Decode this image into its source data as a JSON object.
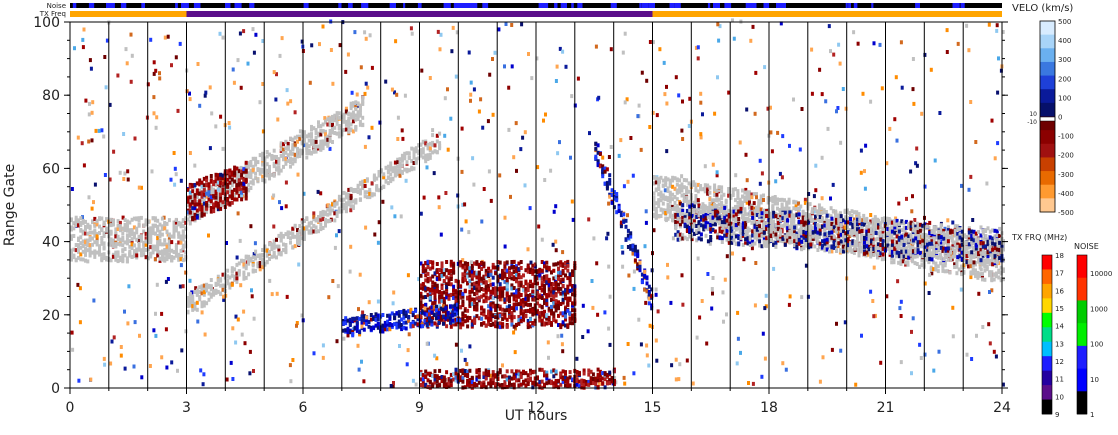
{
  "chart_data": {
    "type": "heatmap",
    "xlabel": "UT hours",
    "ylabel": "Range Gate",
    "xlim": [
      0,
      24
    ],
    "ylim": [
      0,
      100
    ],
    "x_ticks": [
      "0",
      "3",
      "6",
      "9",
      "12",
      "15",
      "18",
      "21",
      "24"
    ],
    "y_ticks": [
      "0",
      "20",
      "40",
      "60",
      "80",
      "100"
    ],
    "strip_labels": {
      "noise": "Noise",
      "txfreq": "TX Freq"
    },
    "tx_freq_strip": [
      {
        "from": 0,
        "to": 3,
        "color": "#ffa500"
      },
      {
        "from": 3,
        "to": 15,
        "color": "#5a0e8a"
      },
      {
        "from": 15,
        "to": 24,
        "color": "#ffa500"
      }
    ],
    "velocity_colorbar": {
      "title": "VELO (km/s)",
      "ticks": [
        "500",
        "400",
        "300",
        "200",
        "100",
        "0",
        "-100",
        "-200",
        "-300",
        "-400",
        "-500"
      ],
      "zero_labels": [
        "10",
        "-10"
      ],
      "range": [
        -500,
        500
      ]
    },
    "txfrq_colorbar": {
      "title": "TX FRQ (MHz)",
      "ticks": [
        "18",
        "17",
        "16",
        "15",
        "14",
        "13",
        "12",
        "11",
        "10",
        "9"
      ]
    },
    "noise_colorbar": {
      "title": "NOISE",
      "ticks": [
        "10000",
        "1000",
        "100",
        "10",
        "1"
      ]
    },
    "bands": [
      {
        "name": "",
        "kind": "ground",
        "x_start": 0.0,
        "x_end": 3.0,
        "y_start": 40,
        "y_end": 40,
        "width": 12
      },
      {
        "name": "",
        "kind": "ground",
        "x_start": 3.0,
        "x_end": 9.5,
        "y_start": 22,
        "y_end": 67,
        "width": 6
      },
      {
        "name": "",
        "kind": "ground",
        "x_start": 3.0,
        "x_end": 7.5,
        "y_start": 48,
        "y_end": 75,
        "width": 8
      },
      {
        "name": "",
        "kind": "ground",
        "x_start": 15.0,
        "x_end": 24.0,
        "y_start": 52,
        "y_end": 34,
        "width": 12
      },
      {
        "name": "",
        "kind": "negative",
        "x_start": 9.0,
        "x_end": 13.0,
        "y_start": 25,
        "y_end": 25,
        "width": 18
      },
      {
        "name": "",
        "kind": "negative",
        "x_start": 3.0,
        "x_end": 4.5,
        "y_start": 50,
        "y_end": 56,
        "width": 10
      },
      {
        "name": "",
        "kind": "negative",
        "x_start": 9.0,
        "x_end": 14.0,
        "y_start": 2,
        "y_end": 2,
        "width": 5
      },
      {
        "name": "",
        "kind": "positive",
        "x_start": 13.5,
        "x_end": 15.0,
        "y_start": 65,
        "y_end": 22,
        "width": 6
      },
      {
        "name": "",
        "kind": "positive",
        "x_start": 7.0,
        "x_end": 10.0,
        "y_start": 16,
        "y_end": 20,
        "width": 5
      },
      {
        "name": "",
        "kind": "mixed",
        "x_start": 15.5,
        "x_end": 24.0,
        "y_start": 45,
        "y_end": 38,
        "width": 10
      }
    ]
  }
}
